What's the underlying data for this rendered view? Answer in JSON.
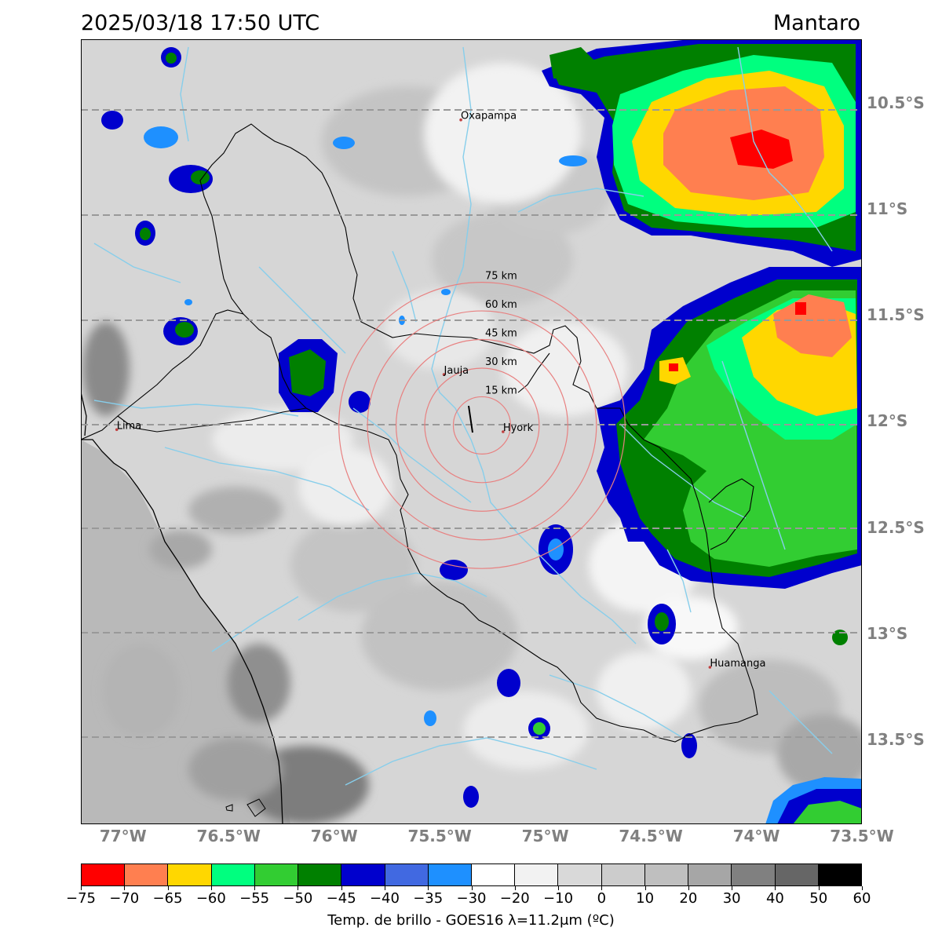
{
  "header": {
    "timestamp": "2025/03/18 17:50 UTC",
    "region": "Mantaro"
  },
  "map": {
    "lon_range": [
      -77.2,
      -73.5
    ],
    "lat_range": [
      -13.9,
      -10.2
    ],
    "lon_ticks": [
      {
        "value": -77.0,
        "label": "77°W"
      },
      {
        "value": -76.5,
        "label": "76.5°W"
      },
      {
        "value": -76.0,
        "label": "76°W"
      },
      {
        "value": -75.5,
        "label": "75.5°W"
      },
      {
        "value": -75.0,
        "label": "75°W"
      },
      {
        "value": -74.5,
        "label": "74.5°W"
      },
      {
        "value": -74.0,
        "label": "74°W"
      },
      {
        "value": -73.5,
        "label": "73.5°W"
      }
    ],
    "lat_ticks": [
      {
        "value": -10.5,
        "label": "10.5°S"
      },
      {
        "value": -11.0,
        "label": "11°S"
      },
      {
        "value": -11.5,
        "label": "11.5°S"
      },
      {
        "value": -12.0,
        "label": "12°S"
      },
      {
        "value": -12.5,
        "label": "12.5°S"
      },
      {
        "value": -13.0,
        "label": "13°S"
      },
      {
        "value": -13.5,
        "label": "13.5°S"
      }
    ],
    "cities": [
      {
        "name": "Oxapampa",
        "lon": -75.4,
        "lat": -10.58
      },
      {
        "name": "Jauja",
        "lon": -75.48,
        "lat": -11.78
      },
      {
        "name": "Hyork",
        "lon": -75.2,
        "lat": -12.05
      },
      {
        "name": "Lima",
        "lon": -77.03,
        "lat": -12.04
      },
      {
        "name": "Huamanga",
        "lon": -74.22,
        "lat": -13.16
      }
    ],
    "radar_center": {
      "lon": -75.3,
      "lat": -12.02
    },
    "range_rings": [
      {
        "km": 15,
        "label": "15 km"
      },
      {
        "km": 30,
        "label": "30 km"
      },
      {
        "km": 45,
        "label": "45 km"
      },
      {
        "km": 60,
        "label": "60 km"
      },
      {
        "km": 75,
        "label": "75 km"
      }
    ]
  },
  "colorbar": {
    "label": "Temp. de brillo - GOES16 λ=11.2μm (ºC)",
    "ticks": [
      "−75",
      "−70",
      "−65",
      "−60",
      "−55",
      "−50",
      "−45",
      "−40",
      "−35",
      "−30",
      "−20",
      "−10",
      "0",
      "10",
      "20",
      "30",
      "40",
      "50",
      "60"
    ],
    "colors": [
      "#ff0000",
      "#ff7f50",
      "#ffd700",
      "#00ff7f",
      "#32cd32",
      "#008000",
      "#0000cd",
      "#4169e1",
      "#1e90ff",
      "#ffffff",
      "#f2f2f2",
      "#d9d9d9",
      "#cccccc",
      "#bfbfbf",
      "#a6a6a6",
      "#808080",
      "#666666",
      "#000000"
    ]
  }
}
